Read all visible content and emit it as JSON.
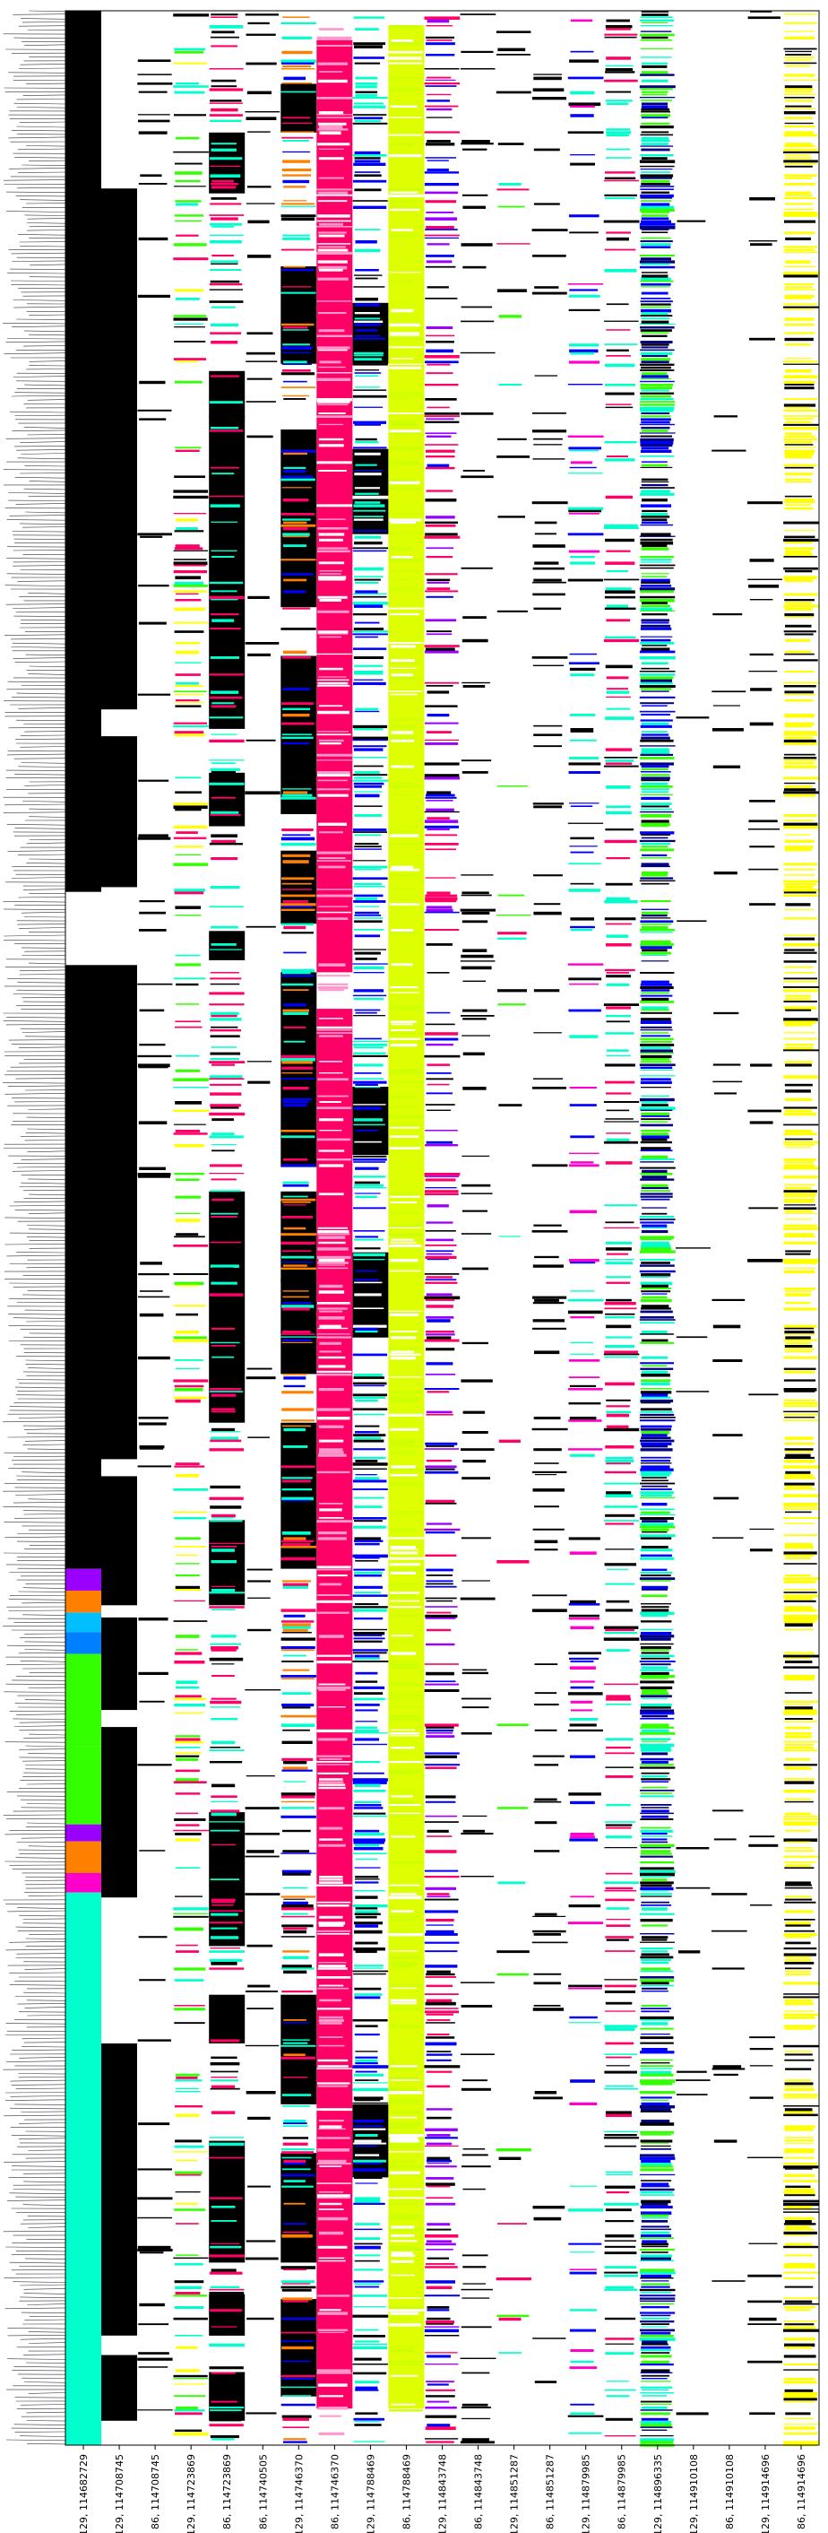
{
  "chart_data": {
    "type": "heatmap",
    "title": "",
    "xlabel": "",
    "ylabel": "",
    "x_tick_labels": [
      "129, 114682729",
      "129, 114708745",
      "86, 114708745",
      "129, 114723869",
      "86, 114723869",
      "86, 114740505",
      "129, 114746370",
      "86, 114746370",
      "129, 114788469",
      "86, 114788469",
      "129, 114843748",
      "86, 114843748",
      "129, 114851287",
      "86, 114851287",
      "129, 114879985",
      "86, 114879985",
      "129, 114896335",
      "129, 114910108",
      "86, 114910108",
      "129, 114914696",
      "86, 114914696"
    ],
    "y_labels": "dense rows of illegible black labels along left edge",
    "grid": false,
    "legend": "none",
    "columns": [
      {
        "blocks": [
          [
            0.0,
            0.362,
            "#000000"
          ],
          [
            0.362,
            0.392,
            "#ffffff"
          ],
          [
            0.392,
            0.64,
            "#000000"
          ],
          [
            0.64,
            0.649,
            "#9b00ff"
          ],
          [
            0.649,
            0.658,
            "#ff8000"
          ],
          [
            0.658,
            0.666,
            "#00bfff"
          ],
          [
            0.666,
            0.675,
            "#0080ff"
          ],
          [
            0.675,
            0.713,
            "#33ff00"
          ],
          [
            0.713,
            0.745,
            "#33ff00"
          ],
          [
            0.745,
            0.752,
            "#9b00ff"
          ],
          [
            0.752,
            0.765,
            "#ff8000"
          ],
          [
            0.765,
            0.773,
            "#ff00cc"
          ],
          [
            0.773,
            1.0,
            "#00ffcc"
          ]
        ],
        "start": 0.362
      },
      {
        "blocks": [
          [
            0.073,
            0.287,
            "#000000"
          ],
          [
            0.298,
            0.36,
            "#000000"
          ],
          [
            0.392,
            0.595,
            "#000000"
          ],
          [
            0.602,
            0.655,
            "#000000"
          ],
          [
            0.66,
            0.698,
            "#000000"
          ],
          [
            0.705,
            0.775,
            "#000000"
          ],
          [
            0.835,
            0.955,
            "#000000"
          ],
          [
            0.963,
            0.99,
            "#000000"
          ]
        ]
      },
      {
        "blocks": []
      },
      {
        "blocks": []
      },
      {
        "blocks": [
          [
            0.05,
            0.075,
            "#000000"
          ],
          [
            0.148,
            0.295,
            "#000000"
          ],
          [
            0.313,
            0.335,
            "#000000"
          ],
          [
            0.378,
            0.39,
            "#000000"
          ],
          [
            0.485,
            0.58,
            "#000000"
          ],
          [
            0.62,
            0.655,
            "#000000"
          ],
          [
            0.74,
            0.795,
            "#000000"
          ],
          [
            0.815,
            0.835,
            "#000000"
          ],
          [
            0.875,
            0.925,
            "#000000"
          ],
          [
            0.938,
            0.955,
            "#000000"
          ],
          [
            0.97,
            0.99,
            "#000000"
          ]
        ]
      },
      {
        "blocks": []
      },
      {
        "blocks": [
          [
            0.03,
            0.05,
            "#000000"
          ],
          [
            0.105,
            0.145,
            "#000000"
          ],
          [
            0.172,
            0.245,
            "#000000"
          ],
          [
            0.265,
            0.33,
            "#000000"
          ],
          [
            0.345,
            0.375,
            "#000000"
          ],
          [
            0.395,
            0.475,
            "#000000"
          ],
          [
            0.485,
            0.56,
            "#000000"
          ],
          [
            0.58,
            0.64,
            "#000000"
          ],
          [
            0.815,
            0.86,
            "#000000"
          ],
          [
            0.88,
            0.925,
            "#000000"
          ],
          [
            0.94,
            0.98,
            "#000000"
          ]
        ]
      },
      {
        "blocks": [
          [
            0.012,
            0.395,
            "#ff0066"
          ],
          [
            0.41,
            0.985,
            "#ff0066"
          ]
        ]
      },
      {
        "blocks": [
          [
            0.12,
            0.145,
            "#000000"
          ],
          [
            0.18,
            0.215,
            "#000000"
          ],
          [
            0.442,
            0.47,
            "#000000"
          ],
          [
            0.51,
            0.545,
            "#000000"
          ],
          [
            0.86,
            0.89,
            "#000000"
          ]
        ]
      },
      {
        "blocks": [
          [
            0.006,
            0.985,
            "#ddff00"
          ]
        ]
      },
      {
        "blocks": []
      },
      {
        "blocks": []
      },
      {
        "blocks": []
      },
      {
        "blocks": []
      },
      {
        "blocks": []
      },
      {
        "blocks": []
      },
      {
        "blocks": [
          [
            0.004,
            0.985,
            "#ffffff"
          ]
        ]
      },
      {
        "blocks": []
      },
      {
        "blocks": []
      },
      {
        "blocks": []
      },
      {
        "blocks": []
      }
    ]
  }
}
